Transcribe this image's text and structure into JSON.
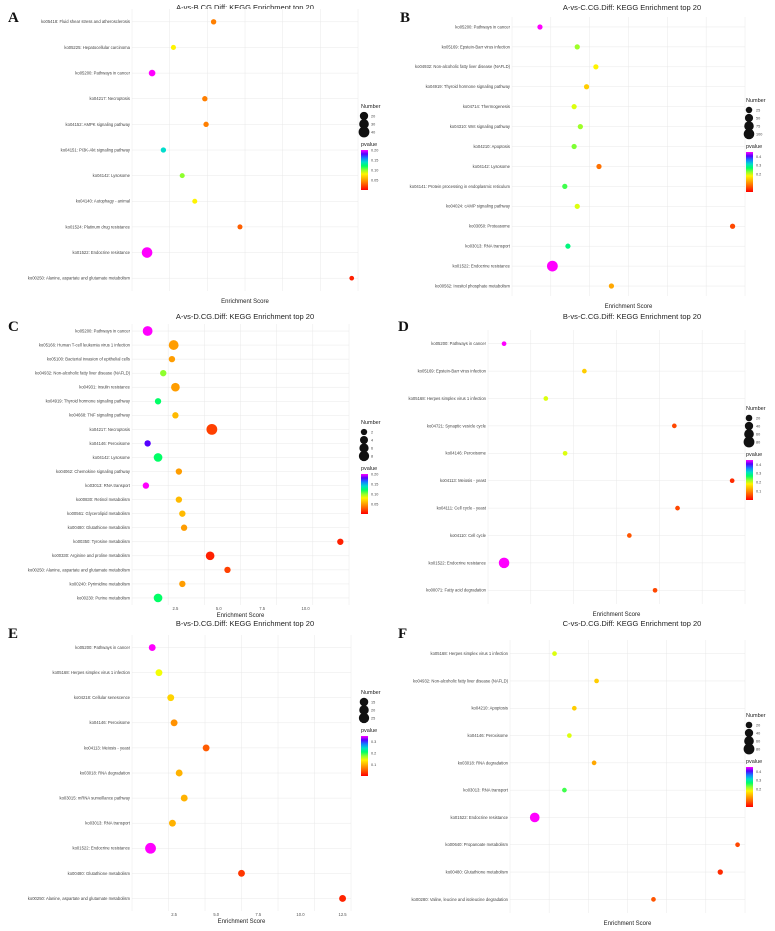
{
  "chart_data": [
    {
      "type": "scatter",
      "panel_label": "A",
      "title": "A-vs-B.CG.Diff: KEGG Enrichment top 20",
      "xlabel": "Enrichment Score",
      "ylabel": "",
      "x_ticks": [],
      "xlim": [
        2.5,
        20.5
      ],
      "size_legend": {
        "title": "Number",
        "labels": [
          "20",
          "30",
          "40"
        ],
        "values": [
          20,
          30,
          40
        ]
      },
      "color_legend": {
        "title": "pvalue",
        "labels": [
          "0.20",
          "0.15",
          "0.10",
          "0.05"
        ],
        "values": [
          0.2,
          0.15,
          0.1,
          0.05
        ]
      },
      "terms": [
        "ko05418: Fluid shear stress and atherosclerosis",
        "ko05225: Hepatocellular carcinoma",
        "ko05200: Pathways in cancer",
        "ko04217: Necroptosis",
        "ko04152: AMPK signaling pathway",
        "ko04151: PI3K-Akt signaling pathway",
        "ko04142: Lysosome",
        "ko04140: Autophagy - animal",
        "ko01524: Platinum drug resistance",
        "ko01522: Endocrine resistance",
        "ko00250: Alanine, aspartate and glutamate metabolism"
      ],
      "x": [
        9.0,
        5.8,
        4.1,
        8.3,
        8.4,
        5.0,
        6.5,
        7.5,
        11.1,
        3.7,
        20.0
      ],
      "count": [
        5,
        4,
        10,
        5,
        5,
        5,
        4,
        4,
        4,
        38,
        3
      ],
      "pvalue": [
        0.04,
        0.08,
        0.2,
        0.04,
        0.04,
        0.14,
        0.1,
        0.08,
        0.03,
        0.2,
        0.01
      ]
    },
    {
      "type": "scatter",
      "panel_label": "B",
      "title": "A-vs-C.CG.Diff: KEGG Enrichment top 20",
      "xlabel": "Enrichment Score",
      "ylabel": "",
      "x_ticks": [],
      "xlim": [
        0.5,
        8.0
      ],
      "size_legend": {
        "title": "Number",
        "labels": [
          "25",
          "50",
          "75",
          "100"
        ],
        "values": [
          25,
          50,
          75,
          100
        ]
      },
      "color_legend": {
        "title": "pvalue",
        "labels": [
          "0.4",
          "0.3",
          "0.2"
        ],
        "values": [
          0.4,
          0.3,
          0.2
        ]
      },
      "terms": [
        "ko05200: Pathways in cancer",
        "ko05169: Epstein-Barr virus infection",
        "ko04932: Non-alcoholic fatty liver disease (NAFLD)",
        "ko04919: Thyroid hormone signaling pathway",
        "ko04714: Thermogenesis",
        "ko04310: Wnt signaling pathway",
        "ko04210: Apoptosis",
        "ko04142: Lysosome",
        "ko04141: Protein processing in endoplasmic reticulum",
        "ko04024: cAMP signaling pathway",
        "ko03050: Proteasome",
        "ko03013: RNA transport",
        "ko01522: Endocrine resistance",
        "ko00562: Inositol phosphate metabolism"
      ],
      "x": [
        1.4,
        2.6,
        3.2,
        2.9,
        2.5,
        2.7,
        2.5,
        3.3,
        2.2,
        2.6,
        7.6,
        2.3,
        1.8,
        3.7
      ],
      "count": [
        12,
        12,
        12,
        12,
        12,
        12,
        12,
        12,
        12,
        12,
        12,
        12,
        105,
        12
      ],
      "pvalue": [
        0.45,
        0.22,
        0.18,
        0.15,
        0.2,
        0.22,
        0.23,
        0.08,
        0.25,
        0.2,
        0.05,
        0.28,
        0.45,
        0.12
      ]
    },
    {
      "type": "scatter",
      "panel_label": "C",
      "title": "A-vs-D.CG.Diff: KEGG Enrichment top 20",
      "xlabel": "Enrichment Score",
      "ylabel": "",
      "x_ticks": [
        "2.5",
        "5.0",
        "7.5",
        "10.0"
      ],
      "xlim": [
        0.0,
        12.5
      ],
      "size_legend": {
        "title": "Number",
        "labels": [
          "2",
          "4",
          "6",
          "8"
        ],
        "values": [
          2,
          4,
          6,
          8
        ]
      },
      "color_legend": {
        "title": "pvalue",
        "labels": [
          "0.20",
          "0.15",
          "0.10",
          "0.05"
        ],
        "values": [
          0.2,
          0.15,
          0.1,
          0.05
        ]
      },
      "terms": [
        "ko05200: Pathways in cancer",
        "ko05166: Human T-cell leukemia virus 1 infection",
        "ko05100: Bacterial invasion of epithelial cells",
        "ko04932: Non-alcoholic fatty liver disease (NAFLD)",
        "ko04931: Insulin resistance",
        "ko04919: Thyroid hormone signaling pathway",
        "ko04668: TNF signaling pathway",
        "ko04217: Necroptosis",
        "ko04146: Peroxisome",
        "ko04142: Lysosome",
        "ko04062: Chemokine signaling pathway",
        "ko03013: RNA transport",
        "ko00830: Retinol metabolism",
        "ko00561: Glycerolipid metabolism",
        "ko00480: Glutathione metabolism",
        "ko00350: Tyrosine metabolism",
        "ko00330: Arginine and proline metabolism",
        "ko00250: Alanine, aspartate and glutamate metabolism",
        "ko00240: Pyrimidine metabolism",
        "ko00230: Purine metabolism"
      ],
      "x": [
        0.9,
        2.4,
        2.3,
        1.8,
        2.5,
        1.5,
        2.5,
        4.6,
        0.9,
        1.5,
        2.7,
        0.8,
        2.7,
        2.9,
        3.0,
        12.0,
        4.5,
        5.5,
        2.9,
        1.5
      ],
      "count": [
        7,
        7,
        2,
        2,
        5,
        2,
        2,
        9,
        2,
        5,
        2,
        2,
        2,
        2,
        2,
        2,
        5,
        2,
        2,
        5
      ],
      "pvalue": [
        0.2,
        0.05,
        0.05,
        0.1,
        0.05,
        0.12,
        0.06,
        0.02,
        0.18,
        0.12,
        0.05,
        0.2,
        0.06,
        0.06,
        0.05,
        0.01,
        0.01,
        0.02,
        0.05,
        0.12
      ]
    },
    {
      "type": "scatter",
      "panel_label": "D",
      "title": "B-vs-C.CG.Diff: KEGG Enrichment top 20",
      "xlabel": "Enrichment Score",
      "ylabel": "",
      "x_ticks": [],
      "xlim": [
        1.0,
        9.0
      ],
      "size_legend": {
        "title": "Number",
        "labels": [
          "20",
          "40",
          "60",
          "80"
        ],
        "values": [
          20,
          40,
          60,
          80
        ]
      },
      "color_legend": {
        "title": "pvalue",
        "labels": [
          "0.4",
          "0.3",
          "0.2",
          "0.1"
        ],
        "values": [
          0.4,
          0.3,
          0.2,
          0.1
        ]
      },
      "terms": [
        "ko05200: Pathways in cancer",
        "ko05169: Epstein-Barr virus infection",
        "ko05168: Herpes simplex virus 1 infection",
        "ko04721: Synaptic vesicle cycle",
        "ko04146: Peroxisome",
        "ko04113: Meiosis - yeast",
        "ko04111: Cell cycle - yeast",
        "ko04110: Cell cycle",
        "ko01522: Endocrine resistance",
        "ko00071: Fatty acid degradation"
      ],
      "x": [
        1.5,
        4.0,
        2.8,
        6.8,
        3.4,
        8.6,
        6.9,
        5.4,
        1.5,
        6.2
      ],
      "count": [
        6,
        6,
        6,
        6,
        6,
        6,
        6,
        6,
        75,
        6
      ],
      "pvalue": [
        0.45,
        0.15,
        0.2,
        0.05,
        0.2,
        0.03,
        0.05,
        0.06,
        0.45,
        0.05
      ]
    },
    {
      "type": "scatter",
      "panel_label": "E",
      "title": "B-vs-D.CG.Diff: KEGG Enrichment top 20",
      "xlabel": "Enrichment Score",
      "ylabel": "",
      "x_ticks": [
        "2.5",
        "5.0",
        "7.5",
        "10.0",
        "12.5"
      ],
      "xlim": [
        0.0,
        13.0
      ],
      "size_legend": {
        "title": "Number",
        "labels": [
          "15",
          "20",
          "25"
        ],
        "values": [
          15,
          20,
          25
        ]
      },
      "color_legend": {
        "title": "pvalue",
        "labels": [
          "0.3",
          "0.2",
          "0.1"
        ],
        "values": [
          0.3,
          0.2,
          0.1
        ]
      },
      "terms": [
        "ko05200: Pathways in cancer",
        "ko05168: Herpes simplex virus 1 infection",
        "ko04218: Cellular senescence",
        "ko04146: Peroxisome",
        "ko04113: Meiosis - yeast",
        "ko03018: RNA degradation",
        "ko03015: mRNA surveillance pathway",
        "ko03013: RNA transport",
        "ko01522: Endocrine resistance",
        "ko00480: Glutathione metabolism",
        "ko00250: Alanine, aspartate and glutamate metabolism"
      ],
      "x": [
        1.2,
        1.6,
        2.3,
        2.5,
        4.4,
        2.8,
        3.1,
        2.4,
        1.1,
        6.5,
        12.5
      ],
      "count": [
        8,
        8,
        8,
        8,
        8,
        8,
        8,
        8,
        28,
        8,
        8
      ],
      "pvalue": [
        0.35,
        0.15,
        0.12,
        0.08,
        0.05,
        0.1,
        0.1,
        0.1,
        0.35,
        0.03,
        0.02
      ]
    },
    {
      "type": "scatter",
      "panel_label": "F",
      "title": "C-vs-D.CG.Diff: KEGG Enrichment top 20",
      "xlabel": "Enrichment Score",
      "ylabel": "",
      "x_ticks": [],
      "xlim": [
        1.0,
        10.5
      ],
      "size_legend": {
        "title": "Number",
        "labels": [
          "20",
          "40",
          "60",
          "80"
        ],
        "values": [
          20,
          40,
          60,
          80
        ]
      },
      "color_legend": {
        "title": "pvalue",
        "labels": [
          "0.4",
          "0.3",
          "0.2"
        ],
        "values": [
          0.4,
          0.3,
          0.2
        ]
      },
      "terms": [
        "ko05168: Herpes simplex virus 1 infection",
        "ko04932: Non-alcoholic fatty liver disease (NAFLD)",
        "ko04210: Apoptosis",
        "ko04146: Peroxisome",
        "ko03018: RNA degradation",
        "ko03013: RNA transport",
        "ko01522: Endocrine resistance",
        "ko00640: Propanoate metabolism",
        "ko00480: Glutathione metabolism",
        "ko00280: Valine, leucine and isoleucine degradation"
      ],
      "x": [
        2.8,
        4.5,
        3.6,
        3.4,
        4.4,
        3.2,
        2.0,
        10.2,
        9.5,
        6.8
      ],
      "count": [
        6,
        6,
        6,
        6,
        6,
        6,
        60,
        6,
        10,
        6
      ],
      "pvalue": [
        0.2,
        0.15,
        0.15,
        0.2,
        0.12,
        0.25,
        0.45,
        0.05,
        0.03,
        0.06
      ]
    }
  ]
}
